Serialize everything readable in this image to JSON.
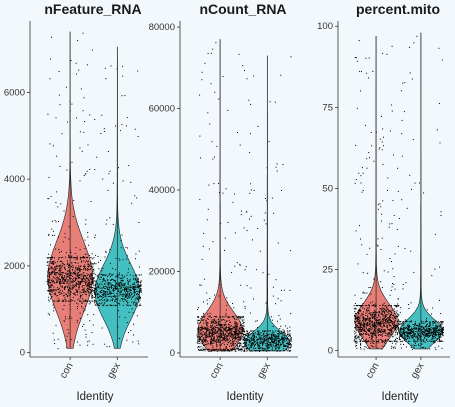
{
  "chart_data": [
    {
      "type": "violin",
      "title": "nFeature_RNA",
      "xlabel": "Identity",
      "ylabel": "",
      "categories": [
        "con",
        "gex"
      ],
      "ylim": [
        -100,
        7600
      ],
      "yticks": [
        0,
        2000,
        4000,
        6000
      ],
      "series": [
        {
          "category": "con",
          "color": "#e5685f",
          "median": 1750,
          "q1": 1350,
          "q3": 2250,
          "min": 100,
          "max": 7400,
          "n_points": 950,
          "dense_low": 1200,
          "dense_high": 2200
        },
        {
          "category": "gex",
          "color": "#26b6b8",
          "median": 1400,
          "q1": 1150,
          "q3": 1850,
          "min": 100,
          "max": 7050,
          "n_points": 650,
          "dense_low": 1100,
          "dense_high": 1800
        }
      ]
    },
    {
      "type": "violin",
      "title": "nCount_RNA",
      "xlabel": "Identity",
      "ylabel": "",
      "categories": [
        "con",
        "gex"
      ],
      "ylim": [
        -1000,
        81000
      ],
      "yticks": [
        0,
        20000,
        40000,
        60000,
        80000
      ],
      "series": [
        {
          "category": "con",
          "color": "#e5685f",
          "median": 5500,
          "q1": 3500,
          "q3": 8500,
          "min": 500,
          "max": 77000,
          "n_points": 950,
          "dense_low": 1000,
          "dense_high": 9000
        },
        {
          "category": "gex",
          "color": "#26b6b8",
          "median": 2500,
          "q1": 1500,
          "q3": 4500,
          "min": 500,
          "max": 73000,
          "n_points": 650,
          "dense_low": 700,
          "dense_high": 5500
        }
      ]
    },
    {
      "type": "violin",
      "title": "percent.mito",
      "xlabel": "Identity",
      "ylabel": "",
      "categories": [
        "con",
        "gex"
      ],
      "ylim": [
        -2,
        101
      ],
      "yticks": [
        0,
        25,
        50,
        75,
        100
      ],
      "series": [
        {
          "category": "con",
          "color": "#e5685f",
          "median": 9,
          "q1": 6,
          "q3": 12,
          "min": 0.5,
          "max": 97,
          "n_points": 950,
          "dense_low": 3,
          "dense_high": 14
        },
        {
          "category": "gex",
          "color": "#26b6b8",
          "median": 6,
          "q1": 4,
          "q3": 8,
          "min": 0.5,
          "max": 98,
          "n_points": 650,
          "dense_low": 3,
          "dense_high": 9
        }
      ]
    }
  ]
}
